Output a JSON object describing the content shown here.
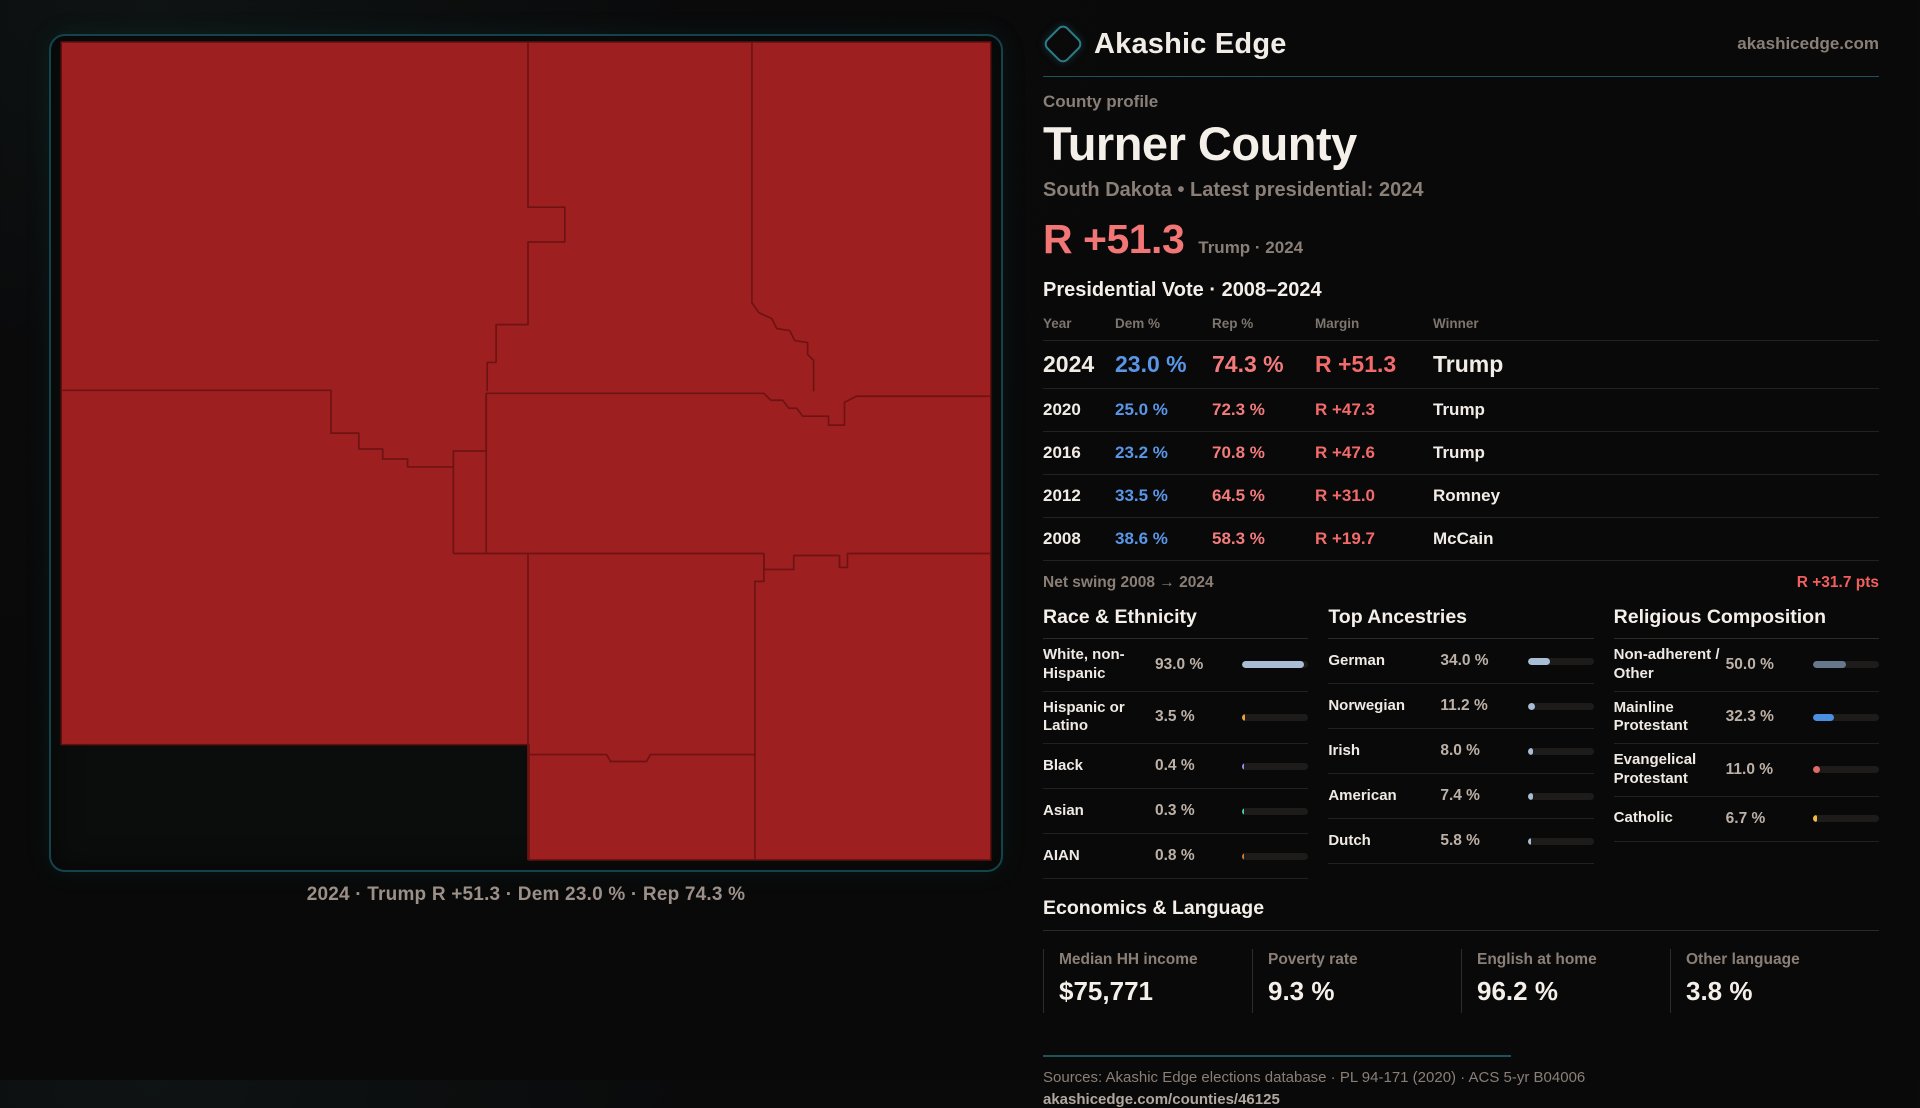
{
  "brand": {
    "name": "Akashic Edge",
    "domain": "akashicedge.com",
    "logo_icon": "diamond-icon",
    "accent_teal": "#1c545c"
  },
  "eyebrow": "County profile",
  "title": "Turner County",
  "subtitle": "South Dakota • Latest presidential: 2024",
  "headline_margin": {
    "value": "R +51.3",
    "context": "Trump · 2024",
    "color": "#f27676"
  },
  "table": {
    "title": "Presidential Vote · 2008–2024",
    "columns": [
      "Year",
      "Dem %",
      "Rep %",
      "Margin",
      "Winner"
    ],
    "rows": [
      {
        "year": "2024",
        "dem": "23.0 %",
        "rep": "74.3 %",
        "margin": "R +51.3",
        "winner": "Trump"
      },
      {
        "year": "2020",
        "dem": "25.0 %",
        "rep": "72.3 %",
        "margin": "R +47.3",
        "winner": "Trump"
      },
      {
        "year": "2016",
        "dem": "23.2 %",
        "rep": "70.8 %",
        "margin": "R +47.6",
        "winner": "Trump"
      },
      {
        "year": "2012",
        "dem": "33.5 %",
        "rep": "64.5 %",
        "margin": "R +31.0",
        "winner": "Romney"
      },
      {
        "year": "2008",
        "dem": "38.6 %",
        "rep": "58.3 %",
        "margin": "R +19.7",
        "winner": "McCain"
      }
    ],
    "dem_color": "#5a96e8",
    "rep_color": "#f47b7b",
    "margin_color": "#f26a6a"
  },
  "net_swing": {
    "label": "Net swing 2008 → 2024",
    "value": "R +31.7 pts"
  },
  "panels": [
    {
      "title": "Race & Ethnicity",
      "rows": [
        {
          "label": "White, non-Hispanic",
          "value": "93.0 %",
          "pct": 93.0,
          "color": "#a9bdd4"
        },
        {
          "label": "Hispanic or Latino",
          "value": "3.5 %",
          "pct": 3.5,
          "color": "#e8a23d"
        },
        {
          "label": "Black",
          "value": "0.4 %",
          "pct": 0.4,
          "color": "#9b8cf0"
        },
        {
          "label": "Asian",
          "value": "0.3 %",
          "pct": 0.3,
          "color": "#4ec9a0"
        },
        {
          "label": "AIAN",
          "value": "0.8 %",
          "pct": 0.8,
          "color": "#cf7a33"
        }
      ]
    },
    {
      "title": "Top Ancestries",
      "rows": [
        {
          "label": "German",
          "value": "34.0 %",
          "pct": 34.0,
          "color": "#a9bdd4"
        },
        {
          "label": "Norwegian",
          "value": "11.2 %",
          "pct": 11.2,
          "color": "#a9bdd4"
        },
        {
          "label": "Irish",
          "value": "8.0 %",
          "pct": 8.0,
          "color": "#a9bdd4"
        },
        {
          "label": "American",
          "value": "7.4 %",
          "pct": 7.4,
          "color": "#a9bdd4"
        },
        {
          "label": "Dutch",
          "value": "5.8 %",
          "pct": 5.8,
          "color": "#a9bdd4"
        }
      ]
    },
    {
      "title": "Religious Composition",
      "rows": [
        {
          "label": "Non-adherent / Other",
          "value": "50.0 %",
          "pct": 50.0,
          "color": "#68788c"
        },
        {
          "label": "Mainline Protestant",
          "value": "32.3 %",
          "pct": 32.3,
          "color": "#4a8fe0"
        },
        {
          "label": "Evangelical Protestant",
          "value": "11.0 %",
          "pct": 11.0,
          "color": "#e06a6a"
        },
        {
          "label": "Catholic",
          "value": "6.7 %",
          "pct": 6.7,
          "color": "#eebc3f"
        }
      ]
    }
  ],
  "economics": {
    "title": "Economics & Language",
    "stats": [
      {
        "label": "Median HH income",
        "value": "$75,771"
      },
      {
        "label": "Poverty rate",
        "value": "9.3 %"
      },
      {
        "label": "English at home",
        "value": "96.2 %"
      },
      {
        "label": "Other language",
        "value": "3.8 %"
      }
    ]
  },
  "map": {
    "caption": "2024 · Trump R +51.3 · Dem 23.0 % · Rep 74.3 %",
    "county_fill": "#9e1f1f",
    "boundary_line": "#6e1313",
    "panel_border": "#13444c"
  },
  "footer": {
    "sources": "Sources: Akashic Edge elections database · PL 94-171 (2020) · ACS 5-yr B04006",
    "permalink": "akashicedge.com/counties/46125"
  }
}
